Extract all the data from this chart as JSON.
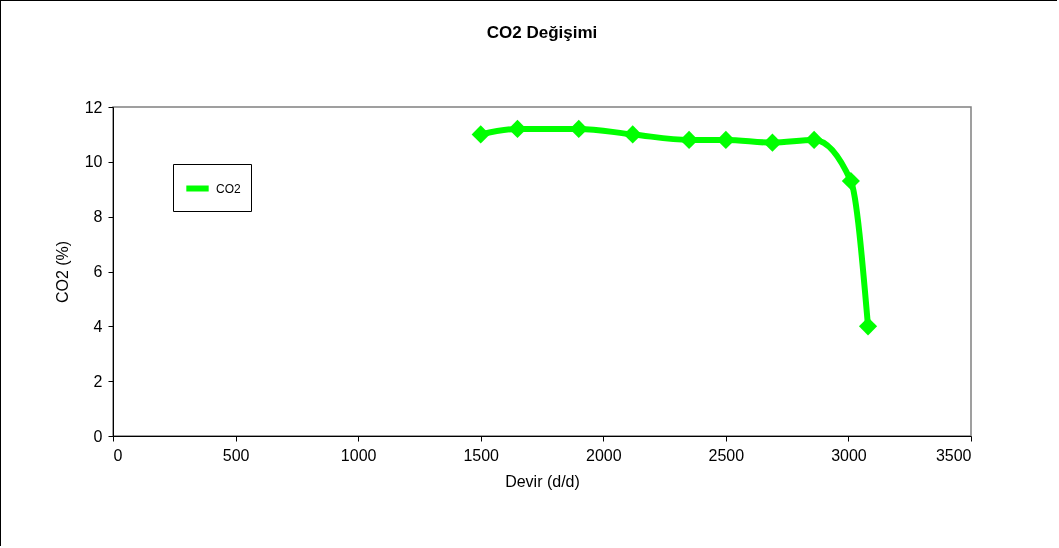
{
  "chart_data": {
    "type": "line",
    "title": "CO2 Değişimi",
    "xlabel": "Devir (d/d)",
    "ylabel": "CO2 (%)",
    "x": [
      1500,
      1650,
      1900,
      2120,
      2350,
      2500,
      2690,
      2860,
      3010,
      3080
    ],
    "series": [
      {
        "name": "CO2",
        "color": "#00ff00",
        "values": [
          11.0,
          11.2,
          11.2,
          11.0,
          10.8,
          10.8,
          10.7,
          10.8,
          9.3,
          4.0
        ]
      }
    ],
    "xlim": [
      0,
      3500
    ],
    "xticks": [
      0,
      500,
      1000,
      1500,
      2000,
      2500,
      3000,
      3500
    ],
    "ylim": [
      0,
      12
    ],
    "yticks": [
      0,
      2,
      4,
      6,
      8,
      10,
      12
    ],
    "grid": false,
    "legend": "top left",
    "marker": "diamond",
    "line_style": "solid"
  }
}
